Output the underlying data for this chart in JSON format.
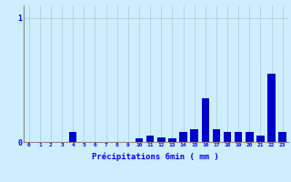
{
  "xlabel": "Précipitations 6min ( mm )",
  "ylabel": "",
  "background_color": "#cceeff",
  "bar_color": "#0000cc",
  "grid_color": "#aacccc",
  "xlim": [
    -0.5,
    23.5
  ],
  "ylim": [
    0,
    1.1
  ],
  "yticks": [
    0,
    1
  ],
  "xticks": [
    0,
    1,
    2,
    3,
    4,
    5,
    6,
    7,
    8,
    9,
    10,
    11,
    12,
    13,
    14,
    15,
    16,
    17,
    18,
    19,
    20,
    21,
    22,
    23
  ],
  "hours": [
    0,
    1,
    2,
    3,
    4,
    5,
    6,
    7,
    8,
    9,
    10,
    11,
    12,
    13,
    14,
    15,
    16,
    17,
    18,
    19,
    20,
    21,
    22,
    23
  ],
  "values": [
    0,
    0,
    0,
    0,
    0.08,
    0,
    0,
    0,
    0,
    0,
    0.03,
    0.05,
    0.04,
    0.03,
    0.08,
    0.1,
    0.35,
    0.1,
    0.08,
    0.08,
    0.08,
    0.05,
    0.55,
    0.08
  ]
}
